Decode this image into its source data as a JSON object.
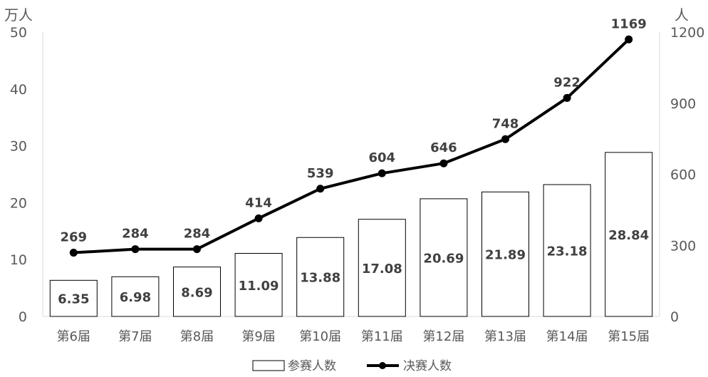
{
  "chart_data": {
    "type": "bar",
    "categories": [
      "第6届",
      "第7届",
      "第8届",
      "第9届",
      "第10届",
      "第11届",
      "第12届",
      "第13届",
      "第14届",
      "第15届"
    ],
    "series": [
      {
        "name": "参赛人数",
        "type": "bar",
        "axis": "left",
        "values": [
          6.35,
          6.98,
          8.69,
          11.09,
          13.88,
          17.08,
          20.69,
          21.89,
          23.18,
          28.84
        ],
        "labels": [
          "6.35",
          "6.98",
          "8.69",
          "11.09",
          "13.88",
          "17.08",
          "20.69",
          "21.89",
          "23.18",
          "28.84"
        ]
      },
      {
        "name": "决赛人数",
        "type": "line",
        "axis": "right",
        "values": [
          269,
          284,
          284,
          414,
          539,
          604,
          646,
          748,
          922,
          1169
        ],
        "labels": [
          "269",
          "284",
          "284",
          "414",
          "539",
          "604",
          "646",
          "748",
          "922",
          "1169"
        ]
      }
    ],
    "y_left": {
      "unit": "万人",
      "ylim": [
        0,
        50
      ],
      "ticks": [
        "0",
        "10",
        "20",
        "30",
        "40",
        "50"
      ]
    },
    "y_right": {
      "unit": "人",
      "ylim": [
        0,
        1200
      ],
      "ticks": [
        "0",
        "300",
        "600",
        "900",
        "1200"
      ]
    },
    "legend_position": "bottom",
    "grid": false,
    "colors": {
      "bar_fill": "#ffffff",
      "bar_stroke": "#000000",
      "line": "#000000",
      "axis": "#d9d9d9",
      "text": "#595959"
    }
  }
}
